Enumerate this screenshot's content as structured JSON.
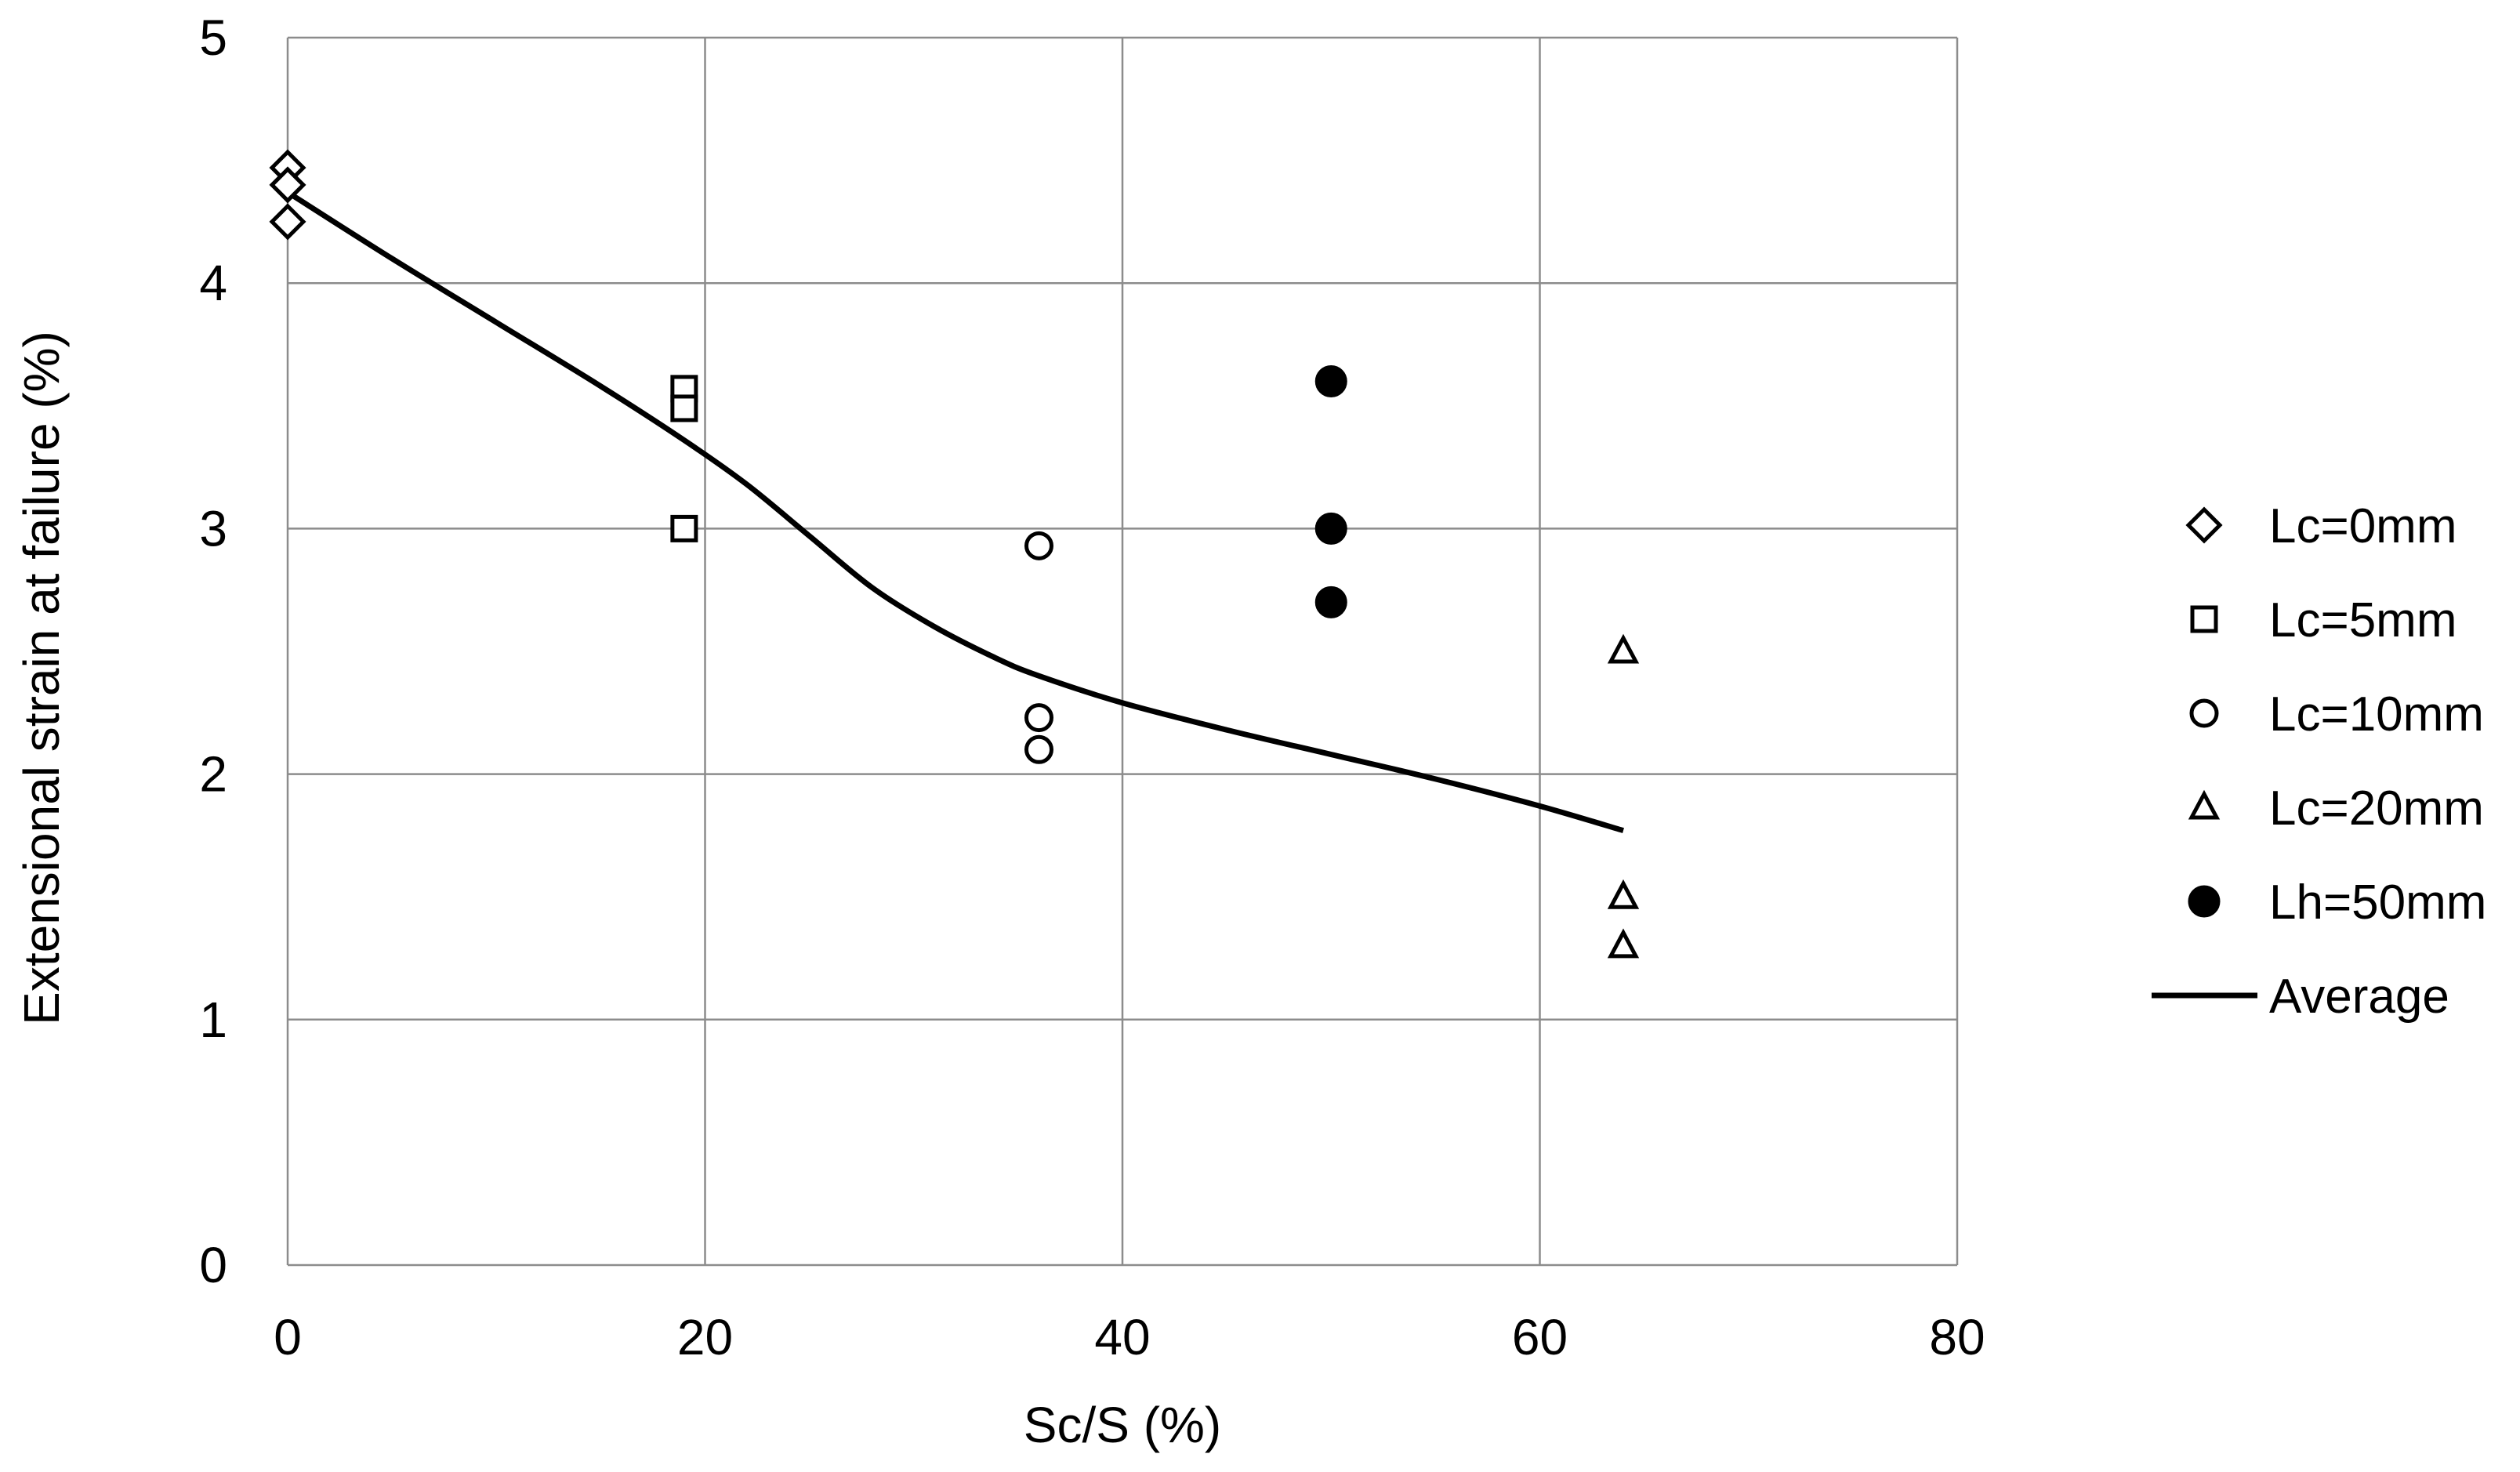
{
  "chart_data": {
    "type": "scatter",
    "title": "",
    "xlabel": "Sc/S (%)",
    "ylabel": "Extensional strain at failure (%)",
    "xlim": [
      0,
      80
    ],
    "ylim": [
      0,
      5
    ],
    "xticks": [
      0,
      20,
      40,
      60,
      80
    ],
    "yticks": [
      0,
      1,
      2,
      3,
      4,
      5
    ],
    "grid": true,
    "legend_position": "right",
    "series": [
      {
        "name": "Lc=0mm",
        "marker": "diamond",
        "filled": false,
        "points": [
          {
            "x": 0,
            "y": 4.47
          },
          {
            "x": 0,
            "y": 4.4
          },
          {
            "x": 0,
            "y": 4.25
          }
        ]
      },
      {
        "name": "Lc=5mm",
        "marker": "square",
        "filled": false,
        "points": [
          {
            "x": 19,
            "y": 3.57
          },
          {
            "x": 19,
            "y": 3.49
          },
          {
            "x": 19,
            "y": 3.0
          }
        ]
      },
      {
        "name": "Lc=10mm",
        "marker": "circle",
        "filled": false,
        "points": [
          {
            "x": 36,
            "y": 2.93
          },
          {
            "x": 36,
            "y": 2.23
          },
          {
            "x": 36,
            "y": 2.1
          }
        ]
      },
      {
        "name": "Lc=20mm",
        "marker": "triangle",
        "filled": false,
        "points": [
          {
            "x": 64,
            "y": 2.5
          },
          {
            "x": 64,
            "y": 1.5
          },
          {
            "x": 64,
            "y": 1.3
          }
        ]
      },
      {
        "name": "Lh=50mm",
        "marker": "circle",
        "filled": true,
        "points": [
          {
            "x": 50,
            "y": 3.6
          },
          {
            "x": 50,
            "y": 3.0
          },
          {
            "x": 50,
            "y": 2.7
          }
        ]
      }
    ],
    "average": {
      "name": "Average",
      "type": "line",
      "points": [
        {
          "x": 0,
          "y": 4.37
        },
        {
          "x": 5,
          "y": 4.1
        },
        {
          "x": 10,
          "y": 3.84
        },
        {
          "x": 15,
          "y": 3.58
        },
        {
          "x": 19,
          "y": 3.36
        },
        {
          "x": 22,
          "y": 3.18
        },
        {
          "x": 25,
          "y": 2.97
        },
        {
          "x": 28,
          "y": 2.76
        },
        {
          "x": 31,
          "y": 2.6
        },
        {
          "x": 34,
          "y": 2.47
        },
        {
          "x": 36,
          "y": 2.4
        },
        {
          "x": 40,
          "y": 2.29
        },
        {
          "x": 45,
          "y": 2.18
        },
        {
          "x": 50,
          "y": 2.08
        },
        {
          "x": 55,
          "y": 1.98
        },
        {
          "x": 60,
          "y": 1.87
        },
        {
          "x": 64,
          "y": 1.77
        }
      ]
    }
  }
}
